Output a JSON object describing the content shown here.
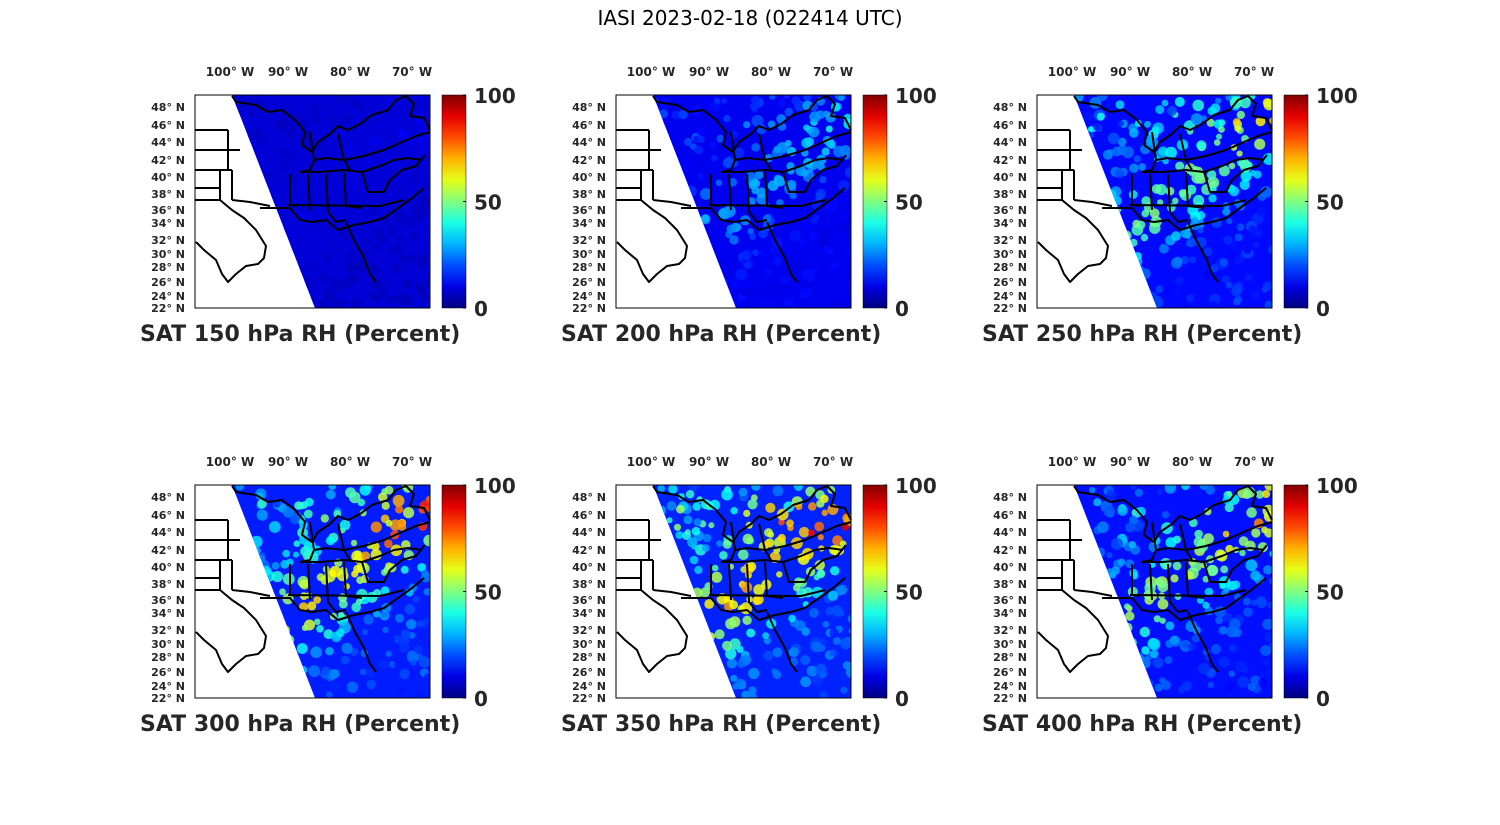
{
  "figure_title": "IASI 2023-02-18 (022414 UTC)",
  "lon_labels": [
    "100° W",
    "90° W",
    "80° W",
    "70° W"
  ],
  "lat_labels": [
    "48° N",
    "46° N",
    "44° N",
    "42° N",
    "40° N",
    "38° N",
    "36° N",
    "34° N",
    "32° N",
    "30° N",
    "28° N",
    "26° N",
    "24° N",
    "22° N"
  ],
  "colorbar_ticks": [
    "0",
    "50",
    "100"
  ],
  "colormap": "jet",
  "panels": [
    {
      "title": "SAT 150 hPa RH (Percent)",
      "level": 150,
      "moisture": 0.05
    },
    {
      "title": "SAT 200 hPa RH (Percent)",
      "level": 200,
      "moisture": 0.25
    },
    {
      "title": "SAT 250 hPa RH (Percent)",
      "level": 250,
      "moisture": 0.45
    },
    {
      "title": "SAT 300 hPa RH (Percent)",
      "level": 300,
      "moisture": 0.6
    },
    {
      "title": "SAT 350 hPa RH (Percent)",
      "level": 350,
      "moisture": 0.65
    },
    {
      "title": "SAT 400 hPa RH (Percent)",
      "level": 400,
      "moisture": 0.5
    }
  ]
}
